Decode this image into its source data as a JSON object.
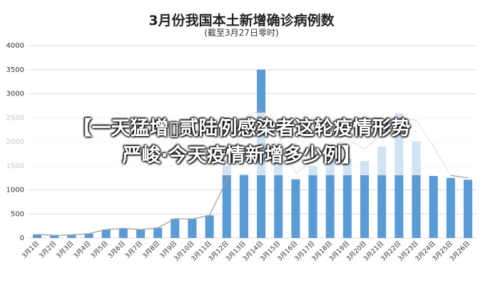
{
  "chart_data": {
    "type": "bar",
    "title": "3月份我国本土新增确诊病例数",
    "subtitle": "(截至3月27日零时)",
    "categories": [
      "3月1日",
      "3月2日",
      "3月3日",
      "3月4日",
      "3月5日",
      "3月6日",
      "3月7日",
      "3月8日",
      "3月9日",
      "3月10日",
      "3月11日",
      "3月12日",
      "3月13日",
      "3月14日",
      "3月15日",
      "3月16日",
      "3月17日",
      "3月18日",
      "3月19日",
      "3月20日",
      "3月21日",
      "3月22日",
      "3月23日",
      "3月24日",
      "3月25日",
      "3月26日"
    ],
    "series": [
      {
        "type": "bar",
        "values": [
          75,
          55,
          65,
          90,
          175,
          200,
          175,
          210,
          400,
          395,
          470,
          1500,
          1330,
          3500,
          1700,
          1220,
          1500,
          1600,
          1650,
          1600,
          1900,
          2590,
          2010,
          1290,
          1250,
          1210
        ],
        "color": "#5b9bd5"
      },
      {
        "type": "line",
        "values": [
          75,
          55,
          65,
          90,
          175,
          200,
          175,
          210,
          400,
          395,
          470,
          1200,
          2500,
          2650,
          2150,
          1350,
          1600,
          1900,
          2050,
          1850,
          2150,
          2500,
          2450,
          1900,
          1300,
          1250
        ],
        "color": "#a0a0a0"
      }
    ],
    "yticks": [
      0,
      500,
      1000,
      1500,
      2000,
      2500,
      3000,
      3500,
      4000
    ],
    "ylim": [
      0,
      4000
    ],
    "grid": true,
    "legend": "none"
  },
  "overlay": {
    "line1": "【一天猛增▯贰陆例感染者这轮疫情形势",
    "line2": "严峻·今天疫情新增多少例】"
  }
}
